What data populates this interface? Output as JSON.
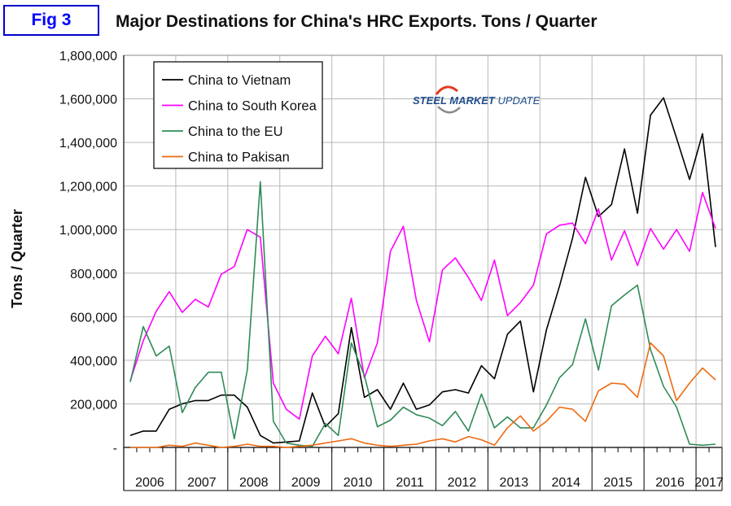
{
  "figure": {
    "label": "Fig 3",
    "title": "Major Destinations for China's HRC Exports. Tons / Quarter"
  },
  "logo": {
    "text_a": "STEEL MARKET",
    "text_b": " UPDATE"
  },
  "colors": {
    "vietnam": "#000000",
    "south_korea": "#ff00ff",
    "eu": "#2e8b57",
    "pakistan": "#ee6a10",
    "grid": "#b8b8b8",
    "label_border": "#0000cc",
    "label_text": "#0000ff"
  },
  "chart_data": {
    "type": "line",
    "title": "Major Destinations for China's HRC Exports. Tons / Quarter",
    "xlabel": "",
    "ylabel": "Tons / Quarter",
    "ylim": [
      0,
      1800000
    ],
    "yticks": [
      0,
      200000,
      400000,
      600000,
      800000,
      1000000,
      1200000,
      1400000,
      1600000,
      1800000
    ],
    "ytick_labels": [
      "-",
      "200,000",
      "400,000",
      "600,000",
      "800,000",
      "1,000,000",
      "1,200,000",
      "1,400,000",
      "1,600,000",
      "1,800,000"
    ],
    "year_labels": [
      "2006",
      "2007",
      "2008",
      "2009",
      "2010",
      "2011",
      "2012",
      "2013",
      "2014",
      "2015",
      "2016",
      "2017"
    ],
    "x_points": 46,
    "grid": true,
    "legend_position": "top-left",
    "series": [
      {
        "name": "China to Vietnam",
        "color_key": "vietnam",
        "values": [
          55000,
          75000,
          75000,
          175000,
          200000,
          215000,
          215000,
          240000,
          240000,
          185000,
          55000,
          20000,
          25000,
          30000,
          250000,
          95000,
          155000,
          550000,
          230000,
          265000,
          175000,
          295000,
          175000,
          195000,
          255000,
          265000,
          250000,
          375000,
          315000,
          520000,
          580000,
          255000,
          540000,
          740000,
          960000,
          1240000,
          1060000,
          1115000,
          1370000,
          1075000,
          1525000,
          1605000,
          1420000,
          1230000,
          1440000,
          920000
        ]
      },
      {
        "name": "China to South Korea",
        "color_key": "south_korea",
        "values": [
          305000,
          490000,
          625000,
          715000,
          620000,
          680000,
          645000,
          795000,
          830000,
          1000000,
          965000,
          295000,
          175000,
          130000,
          420000,
          510000,
          430000,
          685000,
          320000,
          480000,
          900000,
          1015000,
          675000,
          485000,
          815000,
          870000,
          780000,
          675000,
          860000,
          605000,
          665000,
          745000,
          980000,
          1020000,
          1030000,
          935000,
          1095000,
          860000,
          995000,
          835000,
          1005000,
          910000,
          1000000,
          900000,
          1170000,
          1005000
        ]
      },
      {
        "name": "China to the EU",
        "color_key": "eu",
        "values": [
          300000,
          555000,
          420000,
          465000,
          160000,
          275000,
          345000,
          345000,
          40000,
          355000,
          1220000,
          120000,
          20000,
          10000,
          5000,
          110000,
          55000,
          480000,
          330000,
          95000,
          125000,
          185000,
          150000,
          135000,
          100000,
          165000,
          75000,
          245000,
          90000,
          140000,
          90000,
          90000,
          195000,
          320000,
          380000,
          590000,
          355000,
          650000,
          700000,
          745000,
          450000,
          280000,
          185000,
          15000,
          10000,
          15000
        ]
      },
      {
        "name": "China to Pakisan",
        "color_key": "pakistan",
        "values": [
          0,
          0,
          0,
          10000,
          5000,
          20000,
          10000,
          0,
          5000,
          15000,
          5000,
          5000,
          0,
          5000,
          10000,
          20000,
          30000,
          40000,
          20000,
          10000,
          5000,
          10000,
          15000,
          30000,
          40000,
          25000,
          50000,
          35000,
          10000,
          90000,
          145000,
          75000,
          120000,
          185000,
          175000,
          120000,
          260000,
          295000,
          290000,
          230000,
          480000,
          420000,
          215000,
          295000,
          365000,
          310000
        ]
      }
    ]
  }
}
